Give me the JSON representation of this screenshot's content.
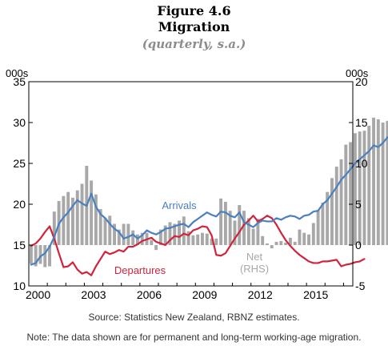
{
  "figure": {
    "label": "Figure 4.6",
    "title": "Migration",
    "subtitle": "(quarterly, s.a.)"
  },
  "notes": {
    "source": "Source: Statistics New Zealand, RBNZ estimates.",
    "note": "Note: The data shown are for permanent and long-term working-age migration."
  },
  "colors": {
    "arrivals": "#4a7fc0",
    "departures": "#d0243c",
    "net": "#a8a8a8",
    "net_label": "#a8a8a8"
  },
  "chart_data": {
    "type": "bar+line",
    "x_ticks": [
      "2000",
      "2003",
      "2006",
      "2009",
      "2012",
      "2015"
    ],
    "x_range": [
      2000.0,
      2017.5
    ],
    "left_axis": {
      "unit": "000s",
      "ylim": [
        10,
        35
      ],
      "ticks": [
        10,
        15,
        20,
        25,
        30,
        35
      ]
    },
    "right_axis": {
      "unit": "000s",
      "ylim": [
        -5,
        20
      ],
      "ticks": [
        -5,
        0,
        5,
        10,
        15,
        20
      ]
    },
    "series": [
      {
        "name": "Arrivals",
        "type": "line",
        "axis": "left",
        "start": 2000.0,
        "step": 0.25,
        "values": [
          12.6,
          12.8,
          13.6,
          14.0,
          14.8,
          16.0,
          17.6,
          18.4,
          19.0,
          19.8,
          20.5,
          20.1,
          19.8,
          21.3,
          19.7,
          18.8,
          18.3,
          17.6,
          17.0,
          16.6,
          15.8,
          16.0,
          16.3,
          15.8,
          16.2,
          16.8,
          16.5,
          16.3,
          16.6,
          17.0,
          17.1,
          17.3,
          17.5,
          17.6,
          17.2,
          17.8,
          18.2,
          18.6,
          19.0,
          18.7,
          18.5,
          19.1,
          19.0,
          18.6,
          18.4,
          19.0,
          17.8,
          17.5,
          17.2,
          17.7,
          18.0,
          17.9,
          17.9,
          18.3,
          18.1,
          18.4,
          18.6,
          18.5,
          18.2,
          18.6,
          18.7,
          19.1,
          19.2,
          20.0,
          20.5,
          21.3,
          22.1,
          23.0,
          23.6,
          24.3,
          25.0,
          25.5,
          26.0,
          26.5,
          27.2,
          27.0,
          27.5,
          28.2,
          28.2,
          28.2,
          27.8,
          28.0,
          28.9,
          29.1
        ]
      },
      {
        "name": "Departures",
        "type": "line",
        "axis": "left",
        "start": 2000.0,
        "step": 0.25,
        "values": [
          14.9,
          15.2,
          15.8,
          16.6,
          17.3,
          15.8,
          14.0,
          12.3,
          12.4,
          12.9,
          12.0,
          11.5,
          11.7,
          11.3,
          12.4,
          13.3,
          14.2,
          13.9,
          14.1,
          14.4,
          14.2,
          14.8,
          14.8,
          15.1,
          15.5,
          15.7,
          15.9,
          15.4,
          15.2,
          15.0,
          15.6,
          16.1,
          16.0,
          16.4,
          16.2,
          16.8,
          17.0,
          17.3,
          17.2,
          16.2,
          13.8,
          13.7,
          14.0,
          14.9,
          15.8,
          16.6,
          17.5,
          18.0,
          18.6,
          17.9,
          18.2,
          18.6,
          18.3,
          17.5,
          16.5,
          15.6,
          14.9,
          14.3,
          13.8,
          13.4,
          13.0,
          12.8,
          12.8,
          13.0,
          13.0,
          13.1,
          13.2,
          12.4,
          12.6,
          12.7,
          12.9,
          13.0,
          13.3
        ]
      },
      {
        "name": "Net\n(RHS)",
        "type": "bar",
        "axis": "right",
        "start": 2000.0,
        "step": 0.25,
        "values": [
          -2.3,
          -2.6,
          -2.3,
          -2.7,
          -2.6,
          4.1,
          5.4,
          6.0,
          6.5,
          5.8,
          6.7,
          7.5,
          9.7,
          7.9,
          6.2,
          4.4,
          3.3,
          3.6,
          2.6,
          1.9,
          2.6,
          2.6,
          1.8,
          1.3,
          1.5,
          1.5,
          0.6,
          -0.6,
          1.9,
          2.4,
          2.8,
          2.6,
          3.0,
          3.5,
          1.7,
          1.2,
          1.3,
          1.5,
          1.4,
          0.8,
          0.8,
          5.7,
          5.3,
          4.2,
          3.0,
          4.9,
          4.2,
          3.3,
          2.0,
          3.2,
          1.1,
          0.2,
          -0.4,
          0.4,
          0.5,
          0.3,
          0.9,
          0.4,
          1.9,
          1.5,
          1.3,
          2.7,
          4.3,
          5.2,
          6.5,
          8.2,
          9.6,
          10.5,
          12.3,
          12.6,
          13.7,
          13.9,
          14.0,
          14.6,
          15.6,
          15.4,
          15.0,
          15.2,
          14.8,
          15.8,
          15.8
        ]
      }
    ],
    "annotations": [
      {
        "text": "Arrivals",
        "series": "Arrivals"
      },
      {
        "text": "Departures",
        "series": "Departures"
      },
      {
        "text": "Net\n(RHS)",
        "series": "Net\n(RHS)"
      }
    ],
    "grid": false,
    "legend": "inline labels"
  }
}
